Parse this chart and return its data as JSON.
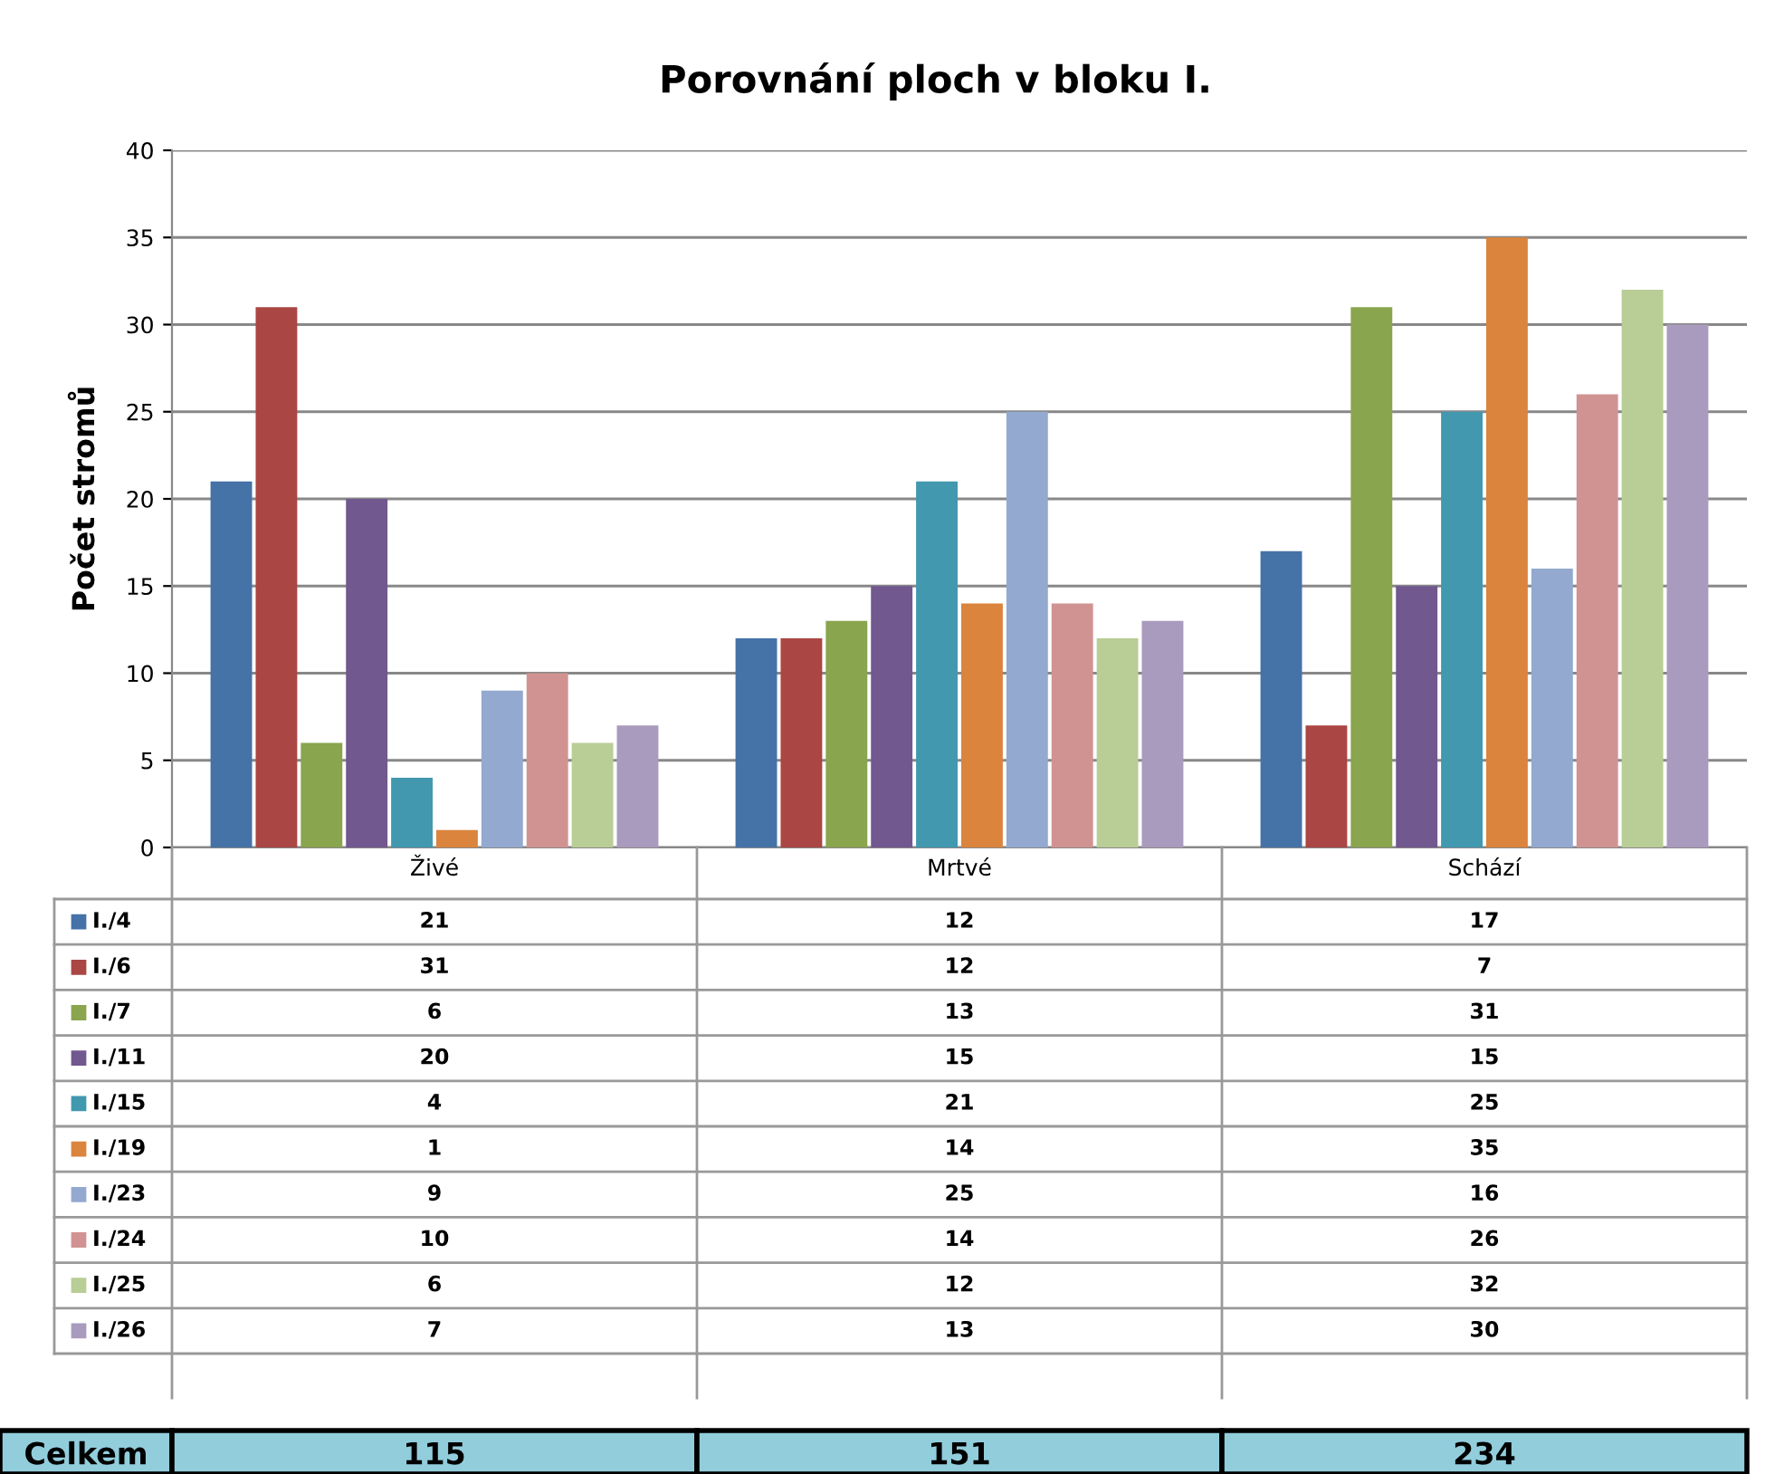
{
  "chart_data": {
    "type": "bar",
    "title": "Porovnání ploch v bloku I.",
    "ylabel": "Počet stromů",
    "categories": [
      "Živé",
      "Mrtvé",
      "Schází"
    ],
    "series": [
      {
        "name": "I./4",
        "color": "#4572a7",
        "values": [
          21,
          12,
          17
        ]
      },
      {
        "name": "I./6",
        "color": "#aa4643",
        "values": [
          31,
          12,
          7
        ]
      },
      {
        "name": "I./7",
        "color": "#89a54e",
        "values": [
          6,
          13,
          31
        ]
      },
      {
        "name": "I./11",
        "color": "#71588f",
        "values": [
          20,
          15,
          15
        ]
      },
      {
        "name": "I./15",
        "color": "#4198af",
        "values": [
          4,
          21,
          25
        ]
      },
      {
        "name": "I./19",
        "color": "#db843d",
        "values": [
          1,
          14,
          35
        ]
      },
      {
        "name": "I./23",
        "color": "#93a9cf",
        "values": [
          9,
          25,
          16
        ]
      },
      {
        "name": "I./24",
        "color": "#d19392",
        "values": [
          10,
          14,
          26
        ]
      },
      {
        "name": "I./25",
        "color": "#b9cd96",
        "values": [
          6,
          12,
          32
        ]
      },
      {
        "name": "I./26",
        "color": "#a99bbd",
        "values": [
          7,
          13,
          30
        ]
      }
    ],
    "ylim": [
      0,
      40
    ],
    "yticks": [
      0,
      5,
      10,
      15,
      20,
      25,
      30,
      35,
      40
    ],
    "grid": "y",
    "legend": "bottom",
    "data_labels": true,
    "annotations": [
      "Celkem",
      "115",
      "151",
      "234"
    ]
  }
}
